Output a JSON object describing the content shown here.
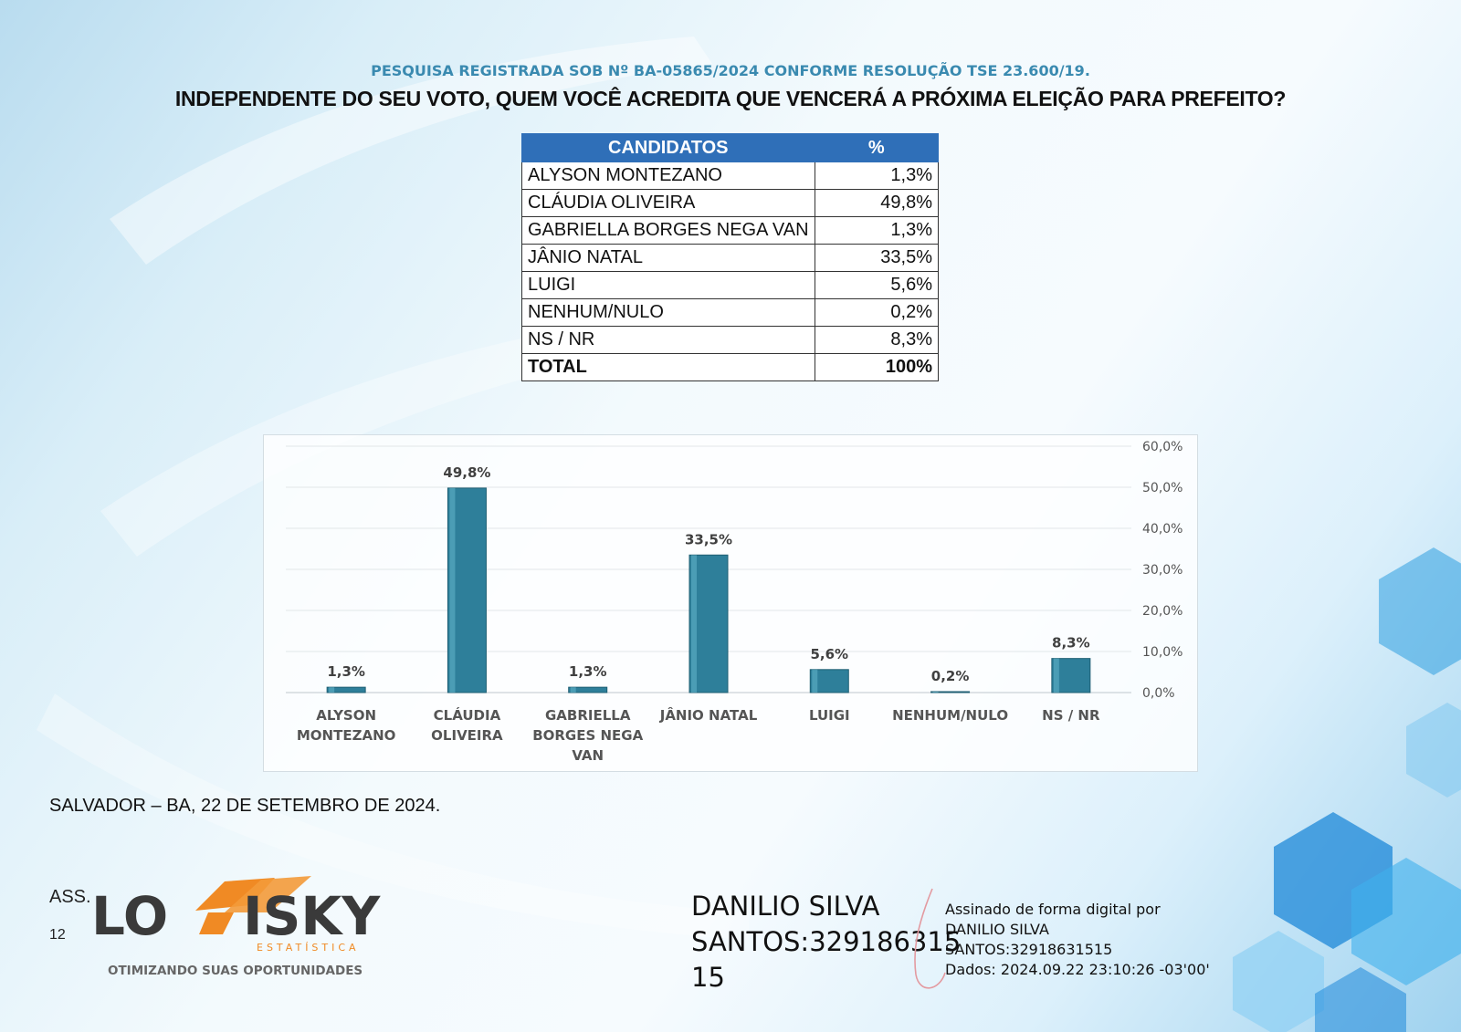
{
  "header": {
    "registry": "PESQUISA REGISTRADA SOB Nº BA-05865/2024 CONFORME RESOLUÇÃO TSE 23.600/19.",
    "question": "INDEPENDENTE DO SEU VOTO, QUEM VOCÊ ACREDITA QUE VENCERÁ A PRÓXIMA ELEIÇÃO PARA PREFEITO?"
  },
  "table": {
    "headers": [
      "CANDIDATOS",
      "%"
    ],
    "rows": [
      {
        "name": "ALYSON MONTEZANO",
        "pct": "1,3%"
      },
      {
        "name": "CLÁUDIA OLIVEIRA",
        "pct": "49,8%"
      },
      {
        "name": "GABRIELLA BORGES NEGA VAN",
        "pct": "1,3%"
      },
      {
        "name": "JÂNIO NATAL",
        "pct": "33,5%"
      },
      {
        "name": "LUIGI",
        "pct": "5,6%"
      },
      {
        "name": "NENHUM/NULO",
        "pct": "0,2%"
      },
      {
        "name": "NS / NR",
        "pct": "8,3%"
      }
    ],
    "total": {
      "name": "TOTAL",
      "pct": "100%"
    }
  },
  "chart_data": {
    "type": "bar",
    "categories": [
      "ALYSON MONTEZANO",
      "CLÁUDIA OLIVEIRA",
      "GABRIELLA BORGES NEGA VAN",
      "JÂNIO NATAL",
      "LUIGI",
      "NENHUM/NULO",
      "NS / NR"
    ],
    "values": [
      1.3,
      49.8,
      1.3,
      33.5,
      5.6,
      0.2,
      8.3
    ],
    "data_labels": [
      "1,3%",
      "49,8%",
      "1,3%",
      "33,5%",
      "5,6%",
      "0,2%",
      "8,3%"
    ],
    "category_lines": [
      [
        "ALYSON",
        "MONTEZANO"
      ],
      [
        "CLÁUDIA",
        "OLIVEIRA"
      ],
      [
        "GABRIELLA",
        "BORGES NEGA",
        "VAN"
      ],
      [
        "JÂNIO NATAL"
      ],
      [
        "LUIGI"
      ],
      [
        "NENHUM/NULO"
      ],
      [
        "NS / NR"
      ]
    ],
    "y_ticks": [
      0,
      10,
      20,
      30,
      40,
      50,
      60
    ],
    "y_tick_labels": [
      "0,0%",
      "10,0%",
      "20,0%",
      "30,0%",
      "40,0%",
      "50,0%",
      "60,0%"
    ],
    "ylim": [
      0,
      60
    ],
    "y_axis_side": "right",
    "grid": true,
    "bar_color": "#2e7f9a",
    "title": "",
    "xlabel": "",
    "ylabel": ""
  },
  "footer": {
    "date_line": "SALVADOR – BA, 22 DE SETEMBRO DE 2024.",
    "ass_label": "ASS.",
    "ass_number": "12",
    "logo": {
      "name": "LOVISKY",
      "left_text": "LO",
      "right_text": "ISKY",
      "subtitle": "ESTATÍSTICA",
      "slogan": "OTIMIZANDO SUAS OPORTUNIDADES",
      "colors": {
        "orange": "#f08a24",
        "dark": "#3a3a3a",
        "gray": "#666666"
      }
    },
    "signer_lines": [
      "DANILIO SILVA",
      "SANTOS:329186315",
      "15"
    ],
    "digital_sig_lines": [
      "Assinado de forma digital por",
      "DANILIO SILVA",
      "SANTOS:32918631515",
      "Dados: 2024.09.22 23:10:26 -03'00'"
    ]
  }
}
